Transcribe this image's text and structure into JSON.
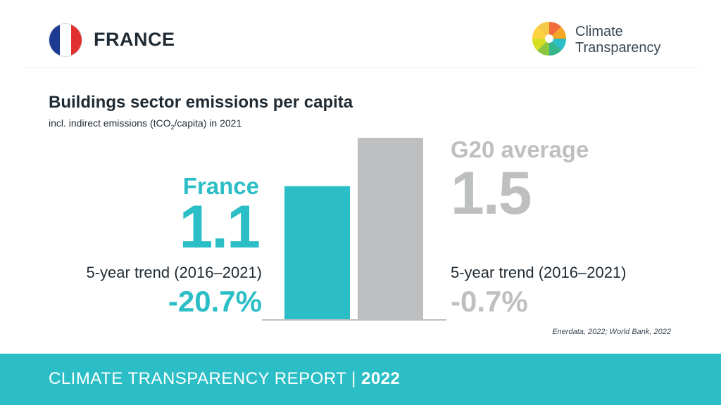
{
  "header": {
    "country": "FRANCE",
    "logo_line1": "Climate",
    "logo_line2": "Transparency"
  },
  "chart_data": {
    "type": "bar",
    "title": "Buildings sector emissions per capita",
    "subtitle_pre": "incl. indirect emissions (tCO",
    "subtitle_sub": "2",
    "subtitle_post": "/capita) in 2021",
    "categories": [
      "France",
      "G20 average"
    ],
    "values": [
      1.1,
      1.5
    ],
    "value_labels": [
      "1.1",
      "1.5"
    ],
    "trend_label": "5-year trend (2016–2021)",
    "trends": [
      "-20.7%",
      "-0.7%"
    ],
    "colors": [
      "#2bbec6",
      "#bdbfc1"
    ],
    "ylim": [
      0,
      1.5
    ]
  },
  "source": "Enerdata, 2022; World Bank, 2022",
  "footer": {
    "label": "CLIMATE TRANSPARENCY REPORT",
    "separator": " | ",
    "year": "2022"
  }
}
